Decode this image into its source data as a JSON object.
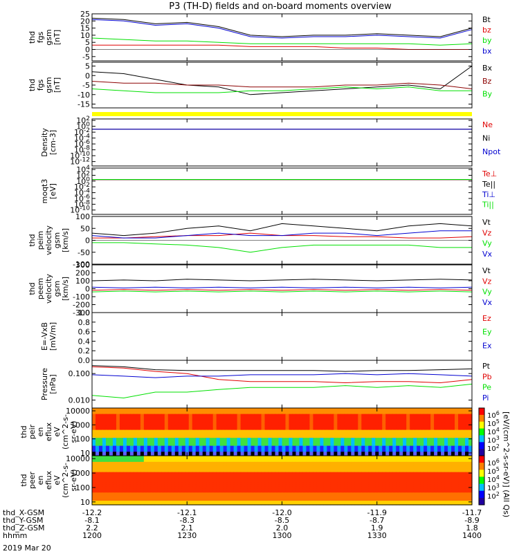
{
  "title": "P3 (TH-D) fields and on-board moments overview",
  "colorbar_label": "[eV/(cm^2-s-sr-eV)] (All Qs)",
  "colorbar_ticks": [
    "10^6",
    "10^5",
    "10^4",
    "10^3",
    "10^2"
  ],
  "time_axis": {
    "rows": [
      {
        "label": "thd_X-GSM",
        "values": [
          "-12.2",
          "-12.1",
          "-12.0",
          "-11.9",
          "-11.7"
        ]
      },
      {
        "label": "thd_Y-GSM",
        "values": [
          "-8.1",
          "-8.3",
          "-8.5",
          "-8.7",
          "-8.9"
        ]
      },
      {
        "label": "thd_Z-GSM",
        "values": [
          "2.2",
          "2.1",
          "2.0",
          "1.9",
          "1.8"
        ]
      },
      {
        "label": "hhmm",
        "values": [
          "1200",
          "1230",
          "1300",
          "1330",
          "1400"
        ]
      }
    ],
    "date": "2019 Mar 20",
    "tick_minutes": [
      0,
      30,
      60,
      90,
      120
    ]
  },
  "colors": {
    "black": "#000000",
    "red": "#e00000",
    "green": "#00e000",
    "blue": "#0000d0",
    "yellow": "#ffff00"
  },
  "chart_data": [
    {
      "type": "line",
      "ylabel": [
        "thd",
        "fgs",
        "gsm",
        "[nT]"
      ],
      "ylim": [
        -8,
        25
      ],
      "yticks": [
        "25",
        "20",
        "15",
        "10",
        "5",
        "0",
        "-5"
      ],
      "tick_values": [
        25,
        20,
        15,
        10,
        5,
        0,
        -5
      ],
      "series": [
        {
          "name": "Bt",
          "color": "#000000",
          "x": [
            0,
            10,
            20,
            30,
            40,
            50,
            60,
            70,
            80,
            90,
            100,
            110,
            120
          ],
          "values": [
            22,
            21,
            18,
            19,
            16,
            10,
            9,
            10,
            10,
            11,
            10,
            9,
            15
          ]
        },
        {
          "name": "bz",
          "color": "#e00000",
          "x": [
            0,
            10,
            20,
            30,
            40,
            50,
            60,
            70,
            80,
            90,
            100,
            110,
            120
          ],
          "values": [
            3,
            3,
            3,
            3,
            3,
            2,
            2,
            2,
            1,
            1,
            0,
            0,
            0
          ]
        },
        {
          "name": "by",
          "color": "#00e000",
          "x": [
            0,
            10,
            20,
            30,
            40,
            50,
            60,
            70,
            80,
            90,
            100,
            110,
            120
          ],
          "values": [
            8,
            7,
            6,
            6,
            5,
            4,
            4,
            4,
            4,
            4,
            4,
            3,
            4
          ]
        },
        {
          "name": "bx",
          "color": "#0000d0",
          "x": [
            0,
            10,
            20,
            30,
            40,
            50,
            60,
            70,
            80,
            90,
            100,
            110,
            120
          ],
          "values": [
            21,
            20,
            17,
            18,
            15,
            9,
            8,
            9,
            9,
            10,
            9,
            8,
            14
          ]
        }
      ]
    },
    {
      "type": "line",
      "ylabel": [
        "thd",
        "fgs",
        "gsm",
        "[nT]"
      ],
      "ylim": [
        -17,
        7
      ],
      "yticks": [
        "5",
        "0",
        "-5",
        "-10",
        "-15"
      ],
      "tick_values": [
        5,
        0,
        -5,
        -10,
        -15
      ],
      "series": [
        {
          "name": "Bx",
          "color": "#000000",
          "x": [
            0,
            10,
            20,
            30,
            40,
            50,
            60,
            70,
            80,
            90,
            100,
            110,
            120
          ],
          "values": [
            2,
            1,
            -2,
            -5,
            -6,
            -10,
            -9,
            -8,
            -7,
            -6,
            -5,
            -7,
            5
          ]
        },
        {
          "name": "Bz",
          "color": "#8b0000",
          "x": [
            0,
            10,
            20,
            30,
            40,
            50,
            60,
            70,
            80,
            90,
            100,
            110,
            120
          ],
          "values": [
            -3,
            -4,
            -4,
            -5,
            -5,
            -6,
            -6,
            -6,
            -5,
            -5,
            -4,
            -5,
            -7
          ]
        },
        {
          "name": "By",
          "color": "#00e000",
          "x": [
            0,
            10,
            20,
            30,
            40,
            50,
            60,
            70,
            80,
            90,
            100,
            110,
            120
          ],
          "values": [
            -7,
            -8,
            -9,
            -9,
            -9,
            -8,
            -8,
            -7,
            -6,
            -7,
            -6,
            -8,
            -8
          ]
        }
      ]
    },
    {
      "type": "line",
      "ylabel": [
        "Density",
        "[cm-3]"
      ],
      "ylim": [
        -13.5,
        2.5
      ],
      "log": true,
      "yticks": [
        "10^2",
        "10^0",
        "10^-2",
        "10^-4",
        "10^-6",
        "10^-8",
        "10^-10",
        "10^-12"
      ],
      "tick_values": [
        2,
        0,
        -2,
        -4,
        -6,
        -8,
        -10,
        -12
      ],
      "series": [
        {
          "name": "Ne",
          "color": "#e00000",
          "x": [
            0,
            120
          ],
          "values": [
            0.1,
            0.1
          ]
        },
        {
          "name": "Ni",
          "color": "#000000",
          "x": [
            0,
            120
          ],
          "values": [
            0.1,
            0.1
          ]
        },
        {
          "name": "Npot",
          "color": "#0000d0",
          "x": [
            0,
            120
          ],
          "values": [
            0.1,
            0.1
          ]
        }
      ]
    },
    {
      "type": "line",
      "ylabel": [
        "moqt3",
        "[eV]"
      ],
      "ylim": [
        -11.5,
        4.5
      ],
      "log": true,
      "yticks": [
        "10^4",
        "10^2",
        "10^0",
        "10^-2",
        "10^-4",
        "10^-6",
        "10^-8",
        "10^-10"
      ],
      "tick_values": [
        4,
        2,
        0,
        -2,
        -4,
        -6,
        -8,
        -10
      ],
      "series": [
        {
          "name": "Te⊥",
          "color": "#e00000",
          "x": [
            0,
            120
          ],
          "values": [
            3.0,
            3.0
          ]
        },
        {
          "name": "Te||",
          "color": "#000000",
          "x": [
            0,
            120
          ],
          "values": [
            3.1,
            3.1
          ]
        },
        {
          "name": "Ti⊥",
          "color": "#0000d0",
          "x": [
            0,
            120
          ],
          "values": [
            3.6,
            3.6
          ]
        },
        {
          "name": "Ti||",
          "color": "#00e000",
          "x": [
            0,
            120
          ],
          "values": [
            3.7,
            3.7
          ]
        }
      ]
    },
    {
      "type": "line",
      "ylabel": [
        "thd",
        "peim",
        "velocity",
        "gsm",
        "[km/s]"
      ],
      "ylim": [
        -100,
        100
      ],
      "yticks": [
        "100",
        "50",
        "0",
        "-50",
        "-100"
      ],
      "tick_values": [
        100,
        50,
        0,
        -50,
        -100
      ],
      "series": [
        {
          "name": "Vt",
          "color": "#000000",
          "x": [
            0,
            10,
            20,
            30,
            40,
            50,
            60,
            70,
            80,
            90,
            100,
            110,
            120
          ],
          "values": [
            30,
            20,
            30,
            50,
            60,
            40,
            70,
            60,
            50,
            40,
            60,
            70,
            60
          ]
        },
        {
          "name": "Vz",
          "color": "#e00000",
          "x": [
            0,
            10,
            20,
            30,
            40,
            50,
            60,
            70,
            80,
            90,
            100,
            110,
            120
          ],
          "values": [
            10,
            10,
            15,
            20,
            20,
            30,
            20,
            20,
            15,
            15,
            10,
            10,
            15
          ]
        },
        {
          "name": "Vy",
          "color": "#00e000",
          "x": [
            0,
            10,
            20,
            30,
            40,
            50,
            60,
            70,
            80,
            90,
            100,
            110,
            120
          ],
          "values": [
            -10,
            -10,
            -15,
            -20,
            -30,
            -50,
            -30,
            -20,
            -20,
            -20,
            -20,
            -30,
            -30
          ]
        },
        {
          "name": "Vx",
          "color": "#0000d0",
          "x": [
            0,
            10,
            20,
            30,
            40,
            50,
            60,
            70,
            80,
            90,
            100,
            110,
            120
          ],
          "values": [
            20,
            10,
            10,
            20,
            30,
            20,
            20,
            30,
            30,
            20,
            30,
            40,
            40
          ]
        }
      ]
    },
    {
      "type": "line",
      "ylabel": [
        "thd",
        "peem",
        "velocity",
        "gsm",
        "[km/s]"
      ],
      "ylim": [
        -300,
        300
      ],
      "yticks": [
        "300",
        "200",
        "100",
        "0",
        "-100",
        "-200",
        "-300"
      ],
      "tick_values": [
        300,
        200,
        100,
        0,
        -100,
        -200,
        -300
      ],
      "series": [
        {
          "name": "Vt",
          "color": "#000000",
          "x": [
            0,
            10,
            20,
            30,
            40,
            50,
            60,
            70,
            80,
            90,
            100,
            110,
            120
          ],
          "values": [
            100,
            110,
            100,
            120,
            110,
            100,
            110,
            120,
            110,
            100,
            110,
            120,
            110
          ]
        },
        {
          "name": "Vz",
          "color": "#e00000",
          "x": [
            0,
            10,
            20,
            30,
            40,
            50,
            60,
            70,
            80,
            90,
            100,
            110,
            120
          ],
          "values": [
            -20,
            -10,
            -20,
            -10,
            -20,
            -10,
            -20,
            -10,
            -20,
            -10,
            -20,
            -10,
            -20
          ]
        },
        {
          "name": "Vy",
          "color": "#00e000",
          "x": [
            0,
            10,
            20,
            30,
            40,
            50,
            60,
            70,
            80,
            90,
            100,
            110,
            120
          ],
          "values": [
            -40,
            -30,
            -40,
            -30,
            -40,
            -30,
            -40,
            -30,
            -40,
            -30,
            -40,
            -30,
            -40
          ]
        },
        {
          "name": "Vx",
          "color": "#0000d0",
          "x": [
            0,
            10,
            20,
            30,
            40,
            50,
            60,
            70,
            80,
            90,
            100,
            110,
            120
          ],
          "values": [
            20,
            10,
            20,
            10,
            20,
            10,
            20,
            10,
            20,
            10,
            20,
            10,
            20
          ]
        }
      ]
    },
    {
      "type": "line",
      "ylabel": [
        "E=-VxB",
        "[mV/m]"
      ],
      "ylim": [
        0,
        1
      ],
      "yticks": [
        "1.0",
        "0.8",
        "0.6",
        "0.4",
        "0.2",
        "0.0"
      ],
      "tick_values": [
        1.0,
        0.8,
        0.6,
        0.4,
        0.2,
        0.0
      ],
      "series": [
        {
          "name": "Ez",
          "color": "#e00000",
          "x": [],
          "values": []
        },
        {
          "name": "Ey",
          "color": "#00e000",
          "x": [],
          "values": []
        },
        {
          "name": "Ex",
          "color": "#0000d0",
          "x": [],
          "values": []
        }
      ]
    },
    {
      "type": "line",
      "ylabel": [
        "Pressure",
        "[nPa]"
      ],
      "ylim": [
        -2.3,
        -0.5
      ],
      "log": true,
      "yticks": [
        "0.100",
        "0.010"
      ],
      "tick_values": [
        -1,
        -2
      ],
      "series": [
        {
          "name": "Pt",
          "color": "#000000",
          "x": [
            0,
            10,
            20,
            30,
            40,
            50,
            60,
            70,
            80,
            90,
            100,
            110,
            120
          ],
          "values": [
            0.2,
            0.18,
            0.14,
            0.13,
            0.13,
            0.13,
            0.13,
            0.13,
            0.12,
            0.13,
            0.13,
            0.14,
            0.15
          ]
        },
        {
          "name": "Pb",
          "color": "#e00000",
          "x": [
            0,
            10,
            20,
            30,
            40,
            50,
            60,
            70,
            80,
            90,
            100,
            110,
            120
          ],
          "values": [
            0.18,
            0.16,
            0.12,
            0.1,
            0.06,
            0.05,
            0.05,
            0.05,
            0.045,
            0.05,
            0.05,
            0.045,
            0.06
          ]
        },
        {
          "name": "Pe",
          "color": "#00e000",
          "x": [
            0,
            10,
            20,
            30,
            40,
            50,
            60,
            70,
            80,
            90,
            100,
            110,
            120
          ],
          "values": [
            0.015,
            0.012,
            0.02,
            0.02,
            0.025,
            0.03,
            0.03,
            0.03,
            0.035,
            0.03,
            0.035,
            0.03,
            0.04
          ]
        },
        {
          "name": "Pi",
          "color": "#0000d0",
          "x": [
            0,
            10,
            20,
            30,
            40,
            50,
            60,
            70,
            80,
            90,
            100,
            110,
            120
          ],
          "values": [
            0.09,
            0.08,
            0.07,
            0.08,
            0.08,
            0.09,
            0.09,
            0.09,
            0.1,
            0.09,
            0.1,
            0.09,
            0.08
          ]
        }
      ]
    },
    {
      "type": "heatmap",
      "ylabel": [
        "thd",
        "peir",
        "en",
        "eflux",
        "eV",
        "(cm^2-s-",
        "sr-eV)"
      ],
      "ylim": [
        0.8,
        4.2
      ],
      "log": true,
      "yticks": [
        "10000",
        "1000",
        "100",
        "10"
      ],
      "tick_values": [
        4,
        3,
        2,
        1
      ]
    },
    {
      "type": "heatmap",
      "ylabel": [
        "thd",
        "peer",
        "en",
        "eflux",
        "eV",
        "(cm^2-s-",
        "sr-eV)"
      ],
      "ylim": [
        0.8,
        4.2
      ],
      "log": true,
      "yticks": [
        "10000",
        "1000",
        "100",
        "10"
      ],
      "tick_values": [
        4,
        3,
        2,
        1
      ]
    }
  ]
}
